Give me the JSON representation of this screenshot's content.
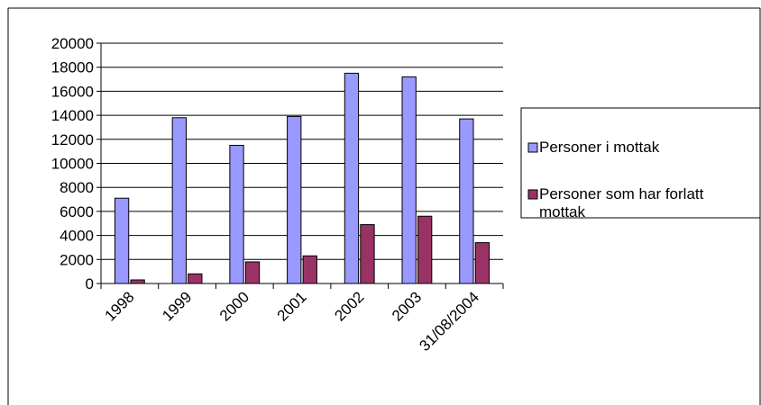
{
  "chart_data": {
    "type": "bar",
    "categories": [
      "1998",
      "1999",
      "2000",
      "2001",
      "2002",
      "2003",
      "31/08/2004"
    ],
    "series": [
      {
        "name": "Personer i mottak",
        "values": [
          7100,
          13800,
          11500,
          13900,
          17500,
          17200,
          13700
        ],
        "color": "#9999ff"
      },
      {
        "name": "Personer som har forlatt mottak",
        "values": [
          300,
          800,
          1800,
          2300,
          4900,
          5600,
          3400
        ],
        "color": "#993366"
      }
    ],
    "ylim": [
      0,
      20000
    ],
    "yticks": [
      0,
      2000,
      4000,
      6000,
      8000,
      10000,
      12000,
      14000,
      16000,
      18000,
      20000
    ],
    "grid": true,
    "legend_position": "right",
    "title": "",
    "xlabel": "",
    "ylabel": ""
  }
}
